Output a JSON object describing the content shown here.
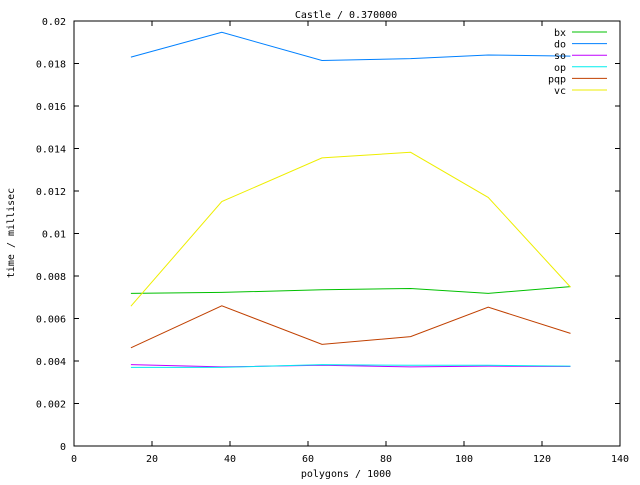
{
  "chart_data": {
    "type": "line",
    "title": "Castle / 0.370000",
    "xlabel": "polygons / 1000",
    "ylabel": "time / millisec",
    "xlim": [
      0,
      140
    ],
    "ylim": [
      0,
      0.02
    ],
    "xticks": [
      0,
      20,
      40,
      60,
      80,
      100,
      120,
      140
    ],
    "yticks": [
      0,
      0.002,
      0.004,
      0.006,
      0.008,
      0.01,
      0.012,
      0.014,
      0.016,
      0.018,
      0.02
    ],
    "ytick_labels": [
      "0",
      "0.002",
      "0.004",
      "0.006",
      "0.008",
      "0.01",
      "0.012",
      "0.014",
      "0.016",
      "0.018",
      "0.02"
    ],
    "grid": false,
    "legend_position": "top-right",
    "x": [
      14.6,
      37.9,
      63.6,
      86.3,
      106.2,
      127.3
    ],
    "series": [
      {
        "name": "bx",
        "color": "#00c000",
        "values": [
          0.00718,
          0.00723,
          0.00735,
          0.00741,
          0.00718,
          0.0075
        ]
      },
      {
        "name": "do",
        "color": "#0080ff",
        "values": [
          0.0183,
          0.01947,
          0.01814,
          0.01823,
          0.0184,
          0.01835
        ]
      },
      {
        "name": "so",
        "color": "#c000ff",
        "values": [
          0.00383,
          0.00372,
          0.0038,
          0.00372,
          0.00376,
          0.00374
        ]
      },
      {
        "name": "op",
        "color": "#00eeee",
        "values": [
          0.0037,
          0.0037,
          0.00383,
          0.0038,
          0.0038,
          0.00376
        ]
      },
      {
        "name": "pqp",
        "color": "#c04000",
        "values": [
          0.00462,
          0.0066,
          0.00478,
          0.00515,
          0.00653,
          0.0053
        ]
      },
      {
        "name": "vc",
        "color": "#eeee00",
        "values": [
          0.00658,
          0.0115,
          0.01356,
          0.01382,
          0.0117,
          0.00748
        ]
      }
    ]
  }
}
